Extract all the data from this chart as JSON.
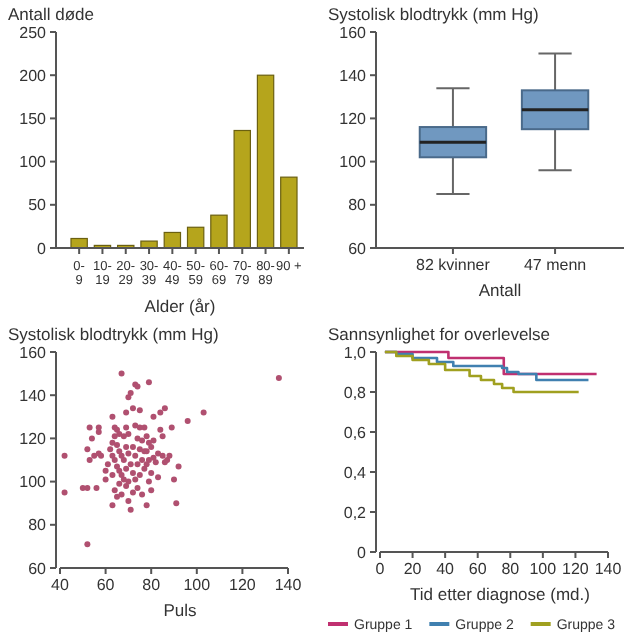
{
  "chart_data": [
    {
      "type": "bar",
      "ylabel": "Antall døde",
      "xlabel": "Alder (år)",
      "categories": [
        "0-9",
        "10-19",
        "20-29",
        "30-39",
        "40-49",
        "50-59",
        "60-69",
        "70-79",
        "80-89",
        "90 +"
      ],
      "values": [
        11,
        3,
        3,
        8,
        18,
        24,
        38,
        136,
        200,
        82
      ],
      "color": "#b5a51c",
      "ylim": [
        0,
        250
      ],
      "yticks": [
        0,
        50,
        100,
        150,
        200,
        250
      ]
    },
    {
      "type": "box",
      "ylabel": "Systolisk blodtrykk (mm Hg)",
      "xlabel": "Antall",
      "categories": [
        "82 kvinner",
        "47 menn"
      ],
      "color": "#7098c0",
      "boxes": [
        {
          "low": 85,
          "q1": 102,
          "median": 109,
          "q3": 116,
          "high": 134
        },
        {
          "low": 96,
          "q1": 115,
          "median": 124,
          "q3": 133,
          "high": 150
        }
      ],
      "ylim": [
        60,
        160
      ],
      "yticks": [
        60,
        80,
        100,
        120,
        140,
        160
      ]
    },
    {
      "type": "scatter",
      "ylabel": "Systolisk blodtrykk (mm Hg)",
      "xlabel": "Puls",
      "marker": "circle",
      "color": "#b05070",
      "xlim": [
        40,
        140
      ],
      "xticks": [
        40,
        60,
        80,
        100,
        120,
        140
      ],
      "ylim": [
        60,
        160
      ],
      "yticks": [
        60,
        80,
        100,
        120,
        140,
        160
      ],
      "x": [
        42,
        42,
        50,
        52,
        52,
        52,
        53,
        53,
        54,
        55,
        56,
        57,
        57,
        57,
        58,
        60,
        60,
        61,
        62,
        63,
        63,
        63,
        63,
        63,
        64,
        64,
        64,
        64,
        65,
        65,
        65,
        65,
        66,
        66,
        66,
        66,
        67,
        67,
        67,
        67,
        68,
        68,
        68,
        69,
        69,
        69,
        69,
        69,
        70,
        70,
        70,
        70,
        70,
        71,
        71,
        71,
        72,
        72,
        72,
        72,
        73,
        73,
        73,
        73,
        74,
        74,
        74,
        74,
        75,
        75,
        75,
        75,
        76,
        76,
        76,
        77,
        77,
        77,
        78,
        78,
        78,
        78,
        79,
        79,
        79,
        79,
        80,
        80,
        80,
        81,
        81,
        81,
        82,
        83,
        83,
        84,
        84,
        85,
        85,
        86,
        86,
        87,
        88,
        89,
        90,
        91,
        92,
        96,
        103,
        136
      ],
      "values": [
        112,
        95,
        97,
        97,
        71,
        115,
        125,
        110,
        120,
        112,
        97,
        125,
        123,
        113,
        112,
        105,
        101,
        108,
        115,
        130,
        118,
        112,
        103,
        89,
        125,
        121,
        110,
        96,
        124,
        117,
        107,
        93,
        122,
        114,
        105,
        99,
        150,
        112,
        103,
        94,
        121,
        110,
        101,
        132,
        125,
        116,
        106,
        98,
        139,
        122,
        113,
        100,
        91,
        141,
        108,
        87,
        134,
        116,
        104,
        95,
        145,
        126,
        112,
        101,
        144,
        120,
        108,
        97,
        133,
        125,
        115,
        103,
        119,
        110,
        94,
        125,
        114,
        106,
        121,
        114,
        108,
        89,
        146,
        118,
        110,
        100,
        116,
        104,
        96,
        130,
        119,
        111,
        109,
        113,
        102,
        124,
        132,
        121,
        112,
        134,
        109,
        110,
        112,
        125,
        101,
        90,
        107,
        128,
        132,
        148
      ]
    },
    {
      "type": "step",
      "ylabel": "Sannsynlighet for overlevelse",
      "xlabel": "Tid etter diagnose (md.)",
      "legend": "bottom",
      "xlim": [
        0,
        140
      ],
      "xticks": [
        0,
        20,
        40,
        60,
        80,
        100,
        120,
        140
      ],
      "ylim": [
        0,
        1
      ],
      "yticks": [
        {
          "value": 0,
          "label": "0"
        },
        {
          "value": 0.2,
          "label": "0,2"
        },
        {
          "value": 0.4,
          "label": "0,4"
        },
        {
          "value": 0.6,
          "label": "0,6"
        },
        {
          "value": 0.8,
          "label": "0,8"
        },
        {
          "value": 1,
          "label": "1,0"
        }
      ],
      "series": [
        {
          "name": "Gruppe 1",
          "color": "#c03070",
          "x": [
            3,
            42,
            76,
            133
          ],
          "values": [
            1,
            0.97,
            0.89,
            0.89
          ]
        },
        {
          "name": "Gruppe 2",
          "color": "#4080b0",
          "x": [
            3,
            10,
            20,
            35,
            45,
            75,
            78,
            85,
            96,
            128
          ],
          "values": [
            1,
            0.99,
            0.97,
            0.95,
            0.93,
            0.92,
            0.9,
            0.89,
            0.86,
            0.86
          ]
        },
        {
          "name": "Gruppe 3",
          "color": "#a0a020",
          "x": [
            3,
            10,
            20,
            30,
            40,
            55,
            62,
            70,
            75,
            82,
            122
          ],
          "values": [
            1,
            0.98,
            0.96,
            0.94,
            0.91,
            0.88,
            0.86,
            0.84,
            0.82,
            0.8,
            0.8
          ]
        }
      ]
    }
  ]
}
